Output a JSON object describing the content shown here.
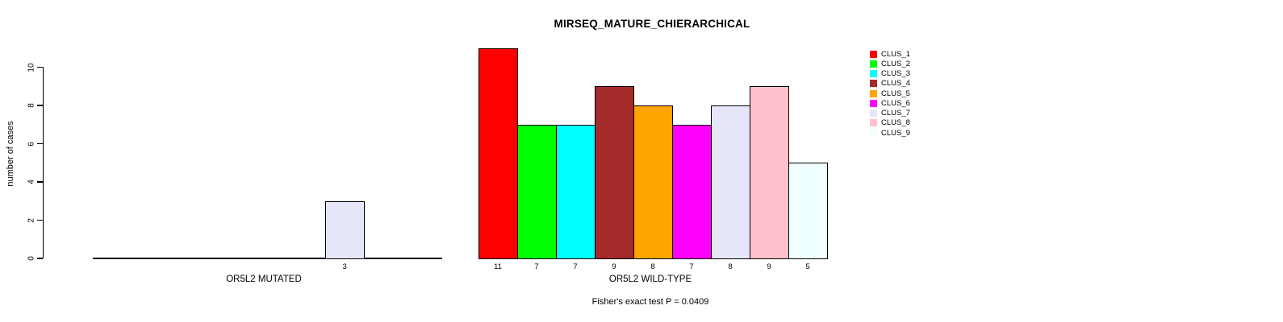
{
  "chart_data": {
    "type": "bar",
    "title": "MIRSEQ_MATURE_CHIERARCHICAL",
    "ylabel": "number of cases",
    "ylim": [
      0,
      10
    ],
    "yticks": [
      0,
      2,
      4,
      6,
      8,
      10
    ],
    "grid": false,
    "legend_position": "right",
    "annotation": "Fisher's exact test P = 0.0409",
    "clusters": [
      {
        "label": "CLUS_1",
        "color": "#FF0000"
      },
      {
        "label": "CLUS_2",
        "color": "#00FF00"
      },
      {
        "label": "CLUS_3",
        "color": "#00FFFF"
      },
      {
        "label": "CLUS_4",
        "color": "#A52A2A"
      },
      {
        "label": "CLUS_5",
        "color": "#FFA500"
      },
      {
        "label": "CLUS_6",
        "color": "#FF00FF"
      },
      {
        "label": "CLUS_7",
        "color": "#E6E6FA"
      },
      {
        "label": "CLUS_8",
        "color": "#FFC0CB"
      },
      {
        "label": "CLUS_9",
        "color": "#F0FFFF"
      }
    ],
    "groups": [
      {
        "label": "OR5L2 MUTATED",
        "values": [
          0,
          0,
          0,
          0,
          0,
          0,
          3,
          0,
          0
        ]
      },
      {
        "label": "OR5L2 WILD-TYPE",
        "values": [
          11,
          7,
          7,
          9,
          8,
          7,
          8,
          9,
          5
        ]
      }
    ]
  }
}
